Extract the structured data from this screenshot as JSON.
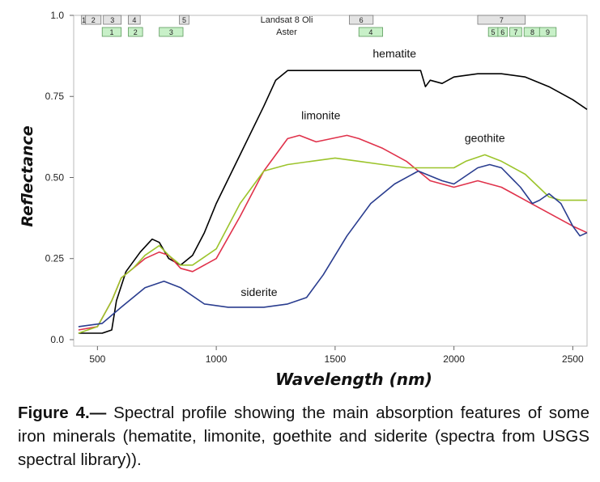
{
  "chart_data": {
    "type": "line",
    "xlabel": "Wavelength (nm)",
    "ylabel": "Reflectance",
    "xlim": [
      400,
      2560
    ],
    "ylim": [
      -0.02,
      1.0
    ],
    "x_ticks": [
      500,
      1000,
      1500,
      2000,
      2500
    ],
    "x_tick_labels": [
      "500",
      "1000",
      "1500",
      "2000",
      "2500"
    ],
    "y_ticks": [
      0.0,
      0.25,
      0.5,
      0.75,
      1.0
    ],
    "y_tick_labels": [
      "0.0",
      "0.25",
      "0.50",
      "0.75",
      "1.0"
    ],
    "series": [
      {
        "name": "hematite",
        "color": "#000000",
        "points": [
          [
            420,
            0.02
          ],
          [
            520,
            0.02
          ],
          [
            560,
            0.03
          ],
          [
            580,
            0.12
          ],
          [
            620,
            0.21
          ],
          [
            680,
            0.27
          ],
          [
            730,
            0.31
          ],
          [
            760,
            0.3
          ],
          [
            800,
            0.25
          ],
          [
            850,
            0.23
          ],
          [
            900,
            0.26
          ],
          [
            950,
            0.33
          ],
          [
            1000,
            0.42
          ],
          [
            1100,
            0.57
          ],
          [
            1200,
            0.72
          ],
          [
            1250,
            0.8
          ],
          [
            1300,
            0.83
          ],
          [
            1400,
            0.83
          ],
          [
            1500,
            0.83
          ],
          [
            1600,
            0.83
          ],
          [
            1700,
            0.83
          ],
          [
            1800,
            0.83
          ],
          [
            1860,
            0.83
          ],
          [
            1880,
            0.78
          ],
          [
            1900,
            0.8
          ],
          [
            1950,
            0.79
          ],
          [
            2000,
            0.81
          ],
          [
            2100,
            0.82
          ],
          [
            2200,
            0.82
          ],
          [
            2300,
            0.81
          ],
          [
            2400,
            0.78
          ],
          [
            2500,
            0.74
          ],
          [
            2560,
            0.71
          ]
        ]
      },
      {
        "name": "limonite",
        "color": "#e0324b",
        "points": [
          [
            420,
            0.03
          ],
          [
            500,
            0.04
          ],
          [
            560,
            0.12
          ],
          [
            600,
            0.19
          ],
          [
            650,
            0.22
          ],
          [
            700,
            0.25
          ],
          [
            760,
            0.27
          ],
          [
            800,
            0.26
          ],
          [
            850,
            0.22
          ],
          [
            900,
            0.21
          ],
          [
            1000,
            0.25
          ],
          [
            1100,
            0.38
          ],
          [
            1200,
            0.52
          ],
          [
            1300,
            0.62
          ],
          [
            1350,
            0.63
          ],
          [
            1420,
            0.61
          ],
          [
            1550,
            0.63
          ],
          [
            1600,
            0.62
          ],
          [
            1700,
            0.59
          ],
          [
            1800,
            0.55
          ],
          [
            1900,
            0.49
          ],
          [
            2000,
            0.47
          ],
          [
            2100,
            0.49
          ],
          [
            2200,
            0.47
          ],
          [
            2250,
            0.45
          ],
          [
            2300,
            0.43
          ],
          [
            2400,
            0.39
          ],
          [
            2500,
            0.35
          ],
          [
            2560,
            0.33
          ]
        ]
      },
      {
        "name": "geothite",
        "color": "#9cc42c",
        "points": [
          [
            420,
            0.02
          ],
          [
            500,
            0.04
          ],
          [
            560,
            0.12
          ],
          [
            600,
            0.19
          ],
          [
            650,
            0.22
          ],
          [
            700,
            0.26
          ],
          [
            760,
            0.29
          ],
          [
            800,
            0.26
          ],
          [
            850,
            0.23
          ],
          [
            900,
            0.23
          ],
          [
            1000,
            0.28
          ],
          [
            1100,
            0.42
          ],
          [
            1200,
            0.52
          ],
          [
            1300,
            0.54
          ],
          [
            1400,
            0.55
          ],
          [
            1500,
            0.56
          ],
          [
            1600,
            0.55
          ],
          [
            1700,
            0.54
          ],
          [
            1800,
            0.53
          ],
          [
            1900,
            0.53
          ],
          [
            2000,
            0.53
          ],
          [
            2050,
            0.55
          ],
          [
            2130,
            0.57
          ],
          [
            2200,
            0.55
          ],
          [
            2300,
            0.51
          ],
          [
            2400,
            0.44
          ],
          [
            2450,
            0.43
          ],
          [
            2560,
            0.43
          ]
        ]
      },
      {
        "name": "siderite",
        "color": "#2a3d8f",
        "points": [
          [
            420,
            0.04
          ],
          [
            520,
            0.05
          ],
          [
            600,
            0.1
          ],
          [
            700,
            0.16
          ],
          [
            780,
            0.18
          ],
          [
            850,
            0.16
          ],
          [
            950,
            0.11
          ],
          [
            1050,
            0.1
          ],
          [
            1200,
            0.1
          ],
          [
            1300,
            0.11
          ],
          [
            1380,
            0.13
          ],
          [
            1450,
            0.2
          ],
          [
            1550,
            0.32
          ],
          [
            1650,
            0.42
          ],
          [
            1750,
            0.48
          ],
          [
            1850,
            0.52
          ],
          [
            1950,
            0.49
          ],
          [
            2000,
            0.48
          ],
          [
            2100,
            0.53
          ],
          [
            2150,
            0.54
          ],
          [
            2200,
            0.53
          ],
          [
            2280,
            0.47
          ],
          [
            2330,
            0.42
          ],
          [
            2360,
            0.43
          ],
          [
            2400,
            0.45
          ],
          [
            2450,
            0.42
          ],
          [
            2500,
            0.35
          ],
          [
            2530,
            0.32
          ],
          [
            2560,
            0.33
          ]
        ]
      }
    ],
    "series_labels": [
      {
        "series": "hematite",
        "text": "hematite",
        "x": 1750,
        "y": 0.87
      },
      {
        "series": "limonite",
        "text": "limonite",
        "x": 1440,
        "y": 0.68
      },
      {
        "series": "geothite",
        "text": "geothite",
        "x": 2130,
        "y": 0.61
      },
      {
        "series": "siderite",
        "text": "siderite",
        "x": 1180,
        "y": 0.135
      }
    ],
    "band_rows": [
      {
        "label": "Landsat 8 Oli",
        "color": "#e3e3e3",
        "stroke": "#777777",
        "bands": [
          {
            "label": "1",
            "start": 433,
            "end": 453
          },
          {
            "label": "2",
            "start": 450,
            "end": 515
          },
          {
            "label": "3",
            "start": 525,
            "end": 600
          },
          {
            "label": "4",
            "start": 630,
            "end": 680
          },
          {
            "label": "5",
            "start": 845,
            "end": 885
          },
          {
            "label": "6",
            "start": 1560,
            "end": 1660
          },
          {
            "label": "7",
            "start": 2100,
            "end": 2300
          }
        ]
      },
      {
        "label": "Aster",
        "color": "#c8f0c8",
        "stroke": "#5c9a5c",
        "bands": [
          {
            "label": "1",
            "start": 520,
            "end": 600
          },
          {
            "label": "2",
            "start": 630,
            "end": 690
          },
          {
            "label": "3",
            "start": 760,
            "end": 860
          },
          {
            "label": "4",
            "start": 1600,
            "end": 1700
          },
          {
            "label": "5",
            "start": 2145,
            "end": 2185
          },
          {
            "label": "6",
            "start": 2185,
            "end": 2225
          },
          {
            "label": "7",
            "start": 2235,
            "end": 2285
          },
          {
            "label": "8",
            "start": 2295,
            "end": 2365
          },
          {
            "label": "9",
            "start": 2360,
            "end": 2430
          }
        ]
      }
    ]
  },
  "caption": {
    "label": "Figure 4.—",
    "text": " Spectral profile showing the main absorption features of some iron minerals (hematite, limonite, goethite and siderite (spectra from USGS spectral library))."
  }
}
